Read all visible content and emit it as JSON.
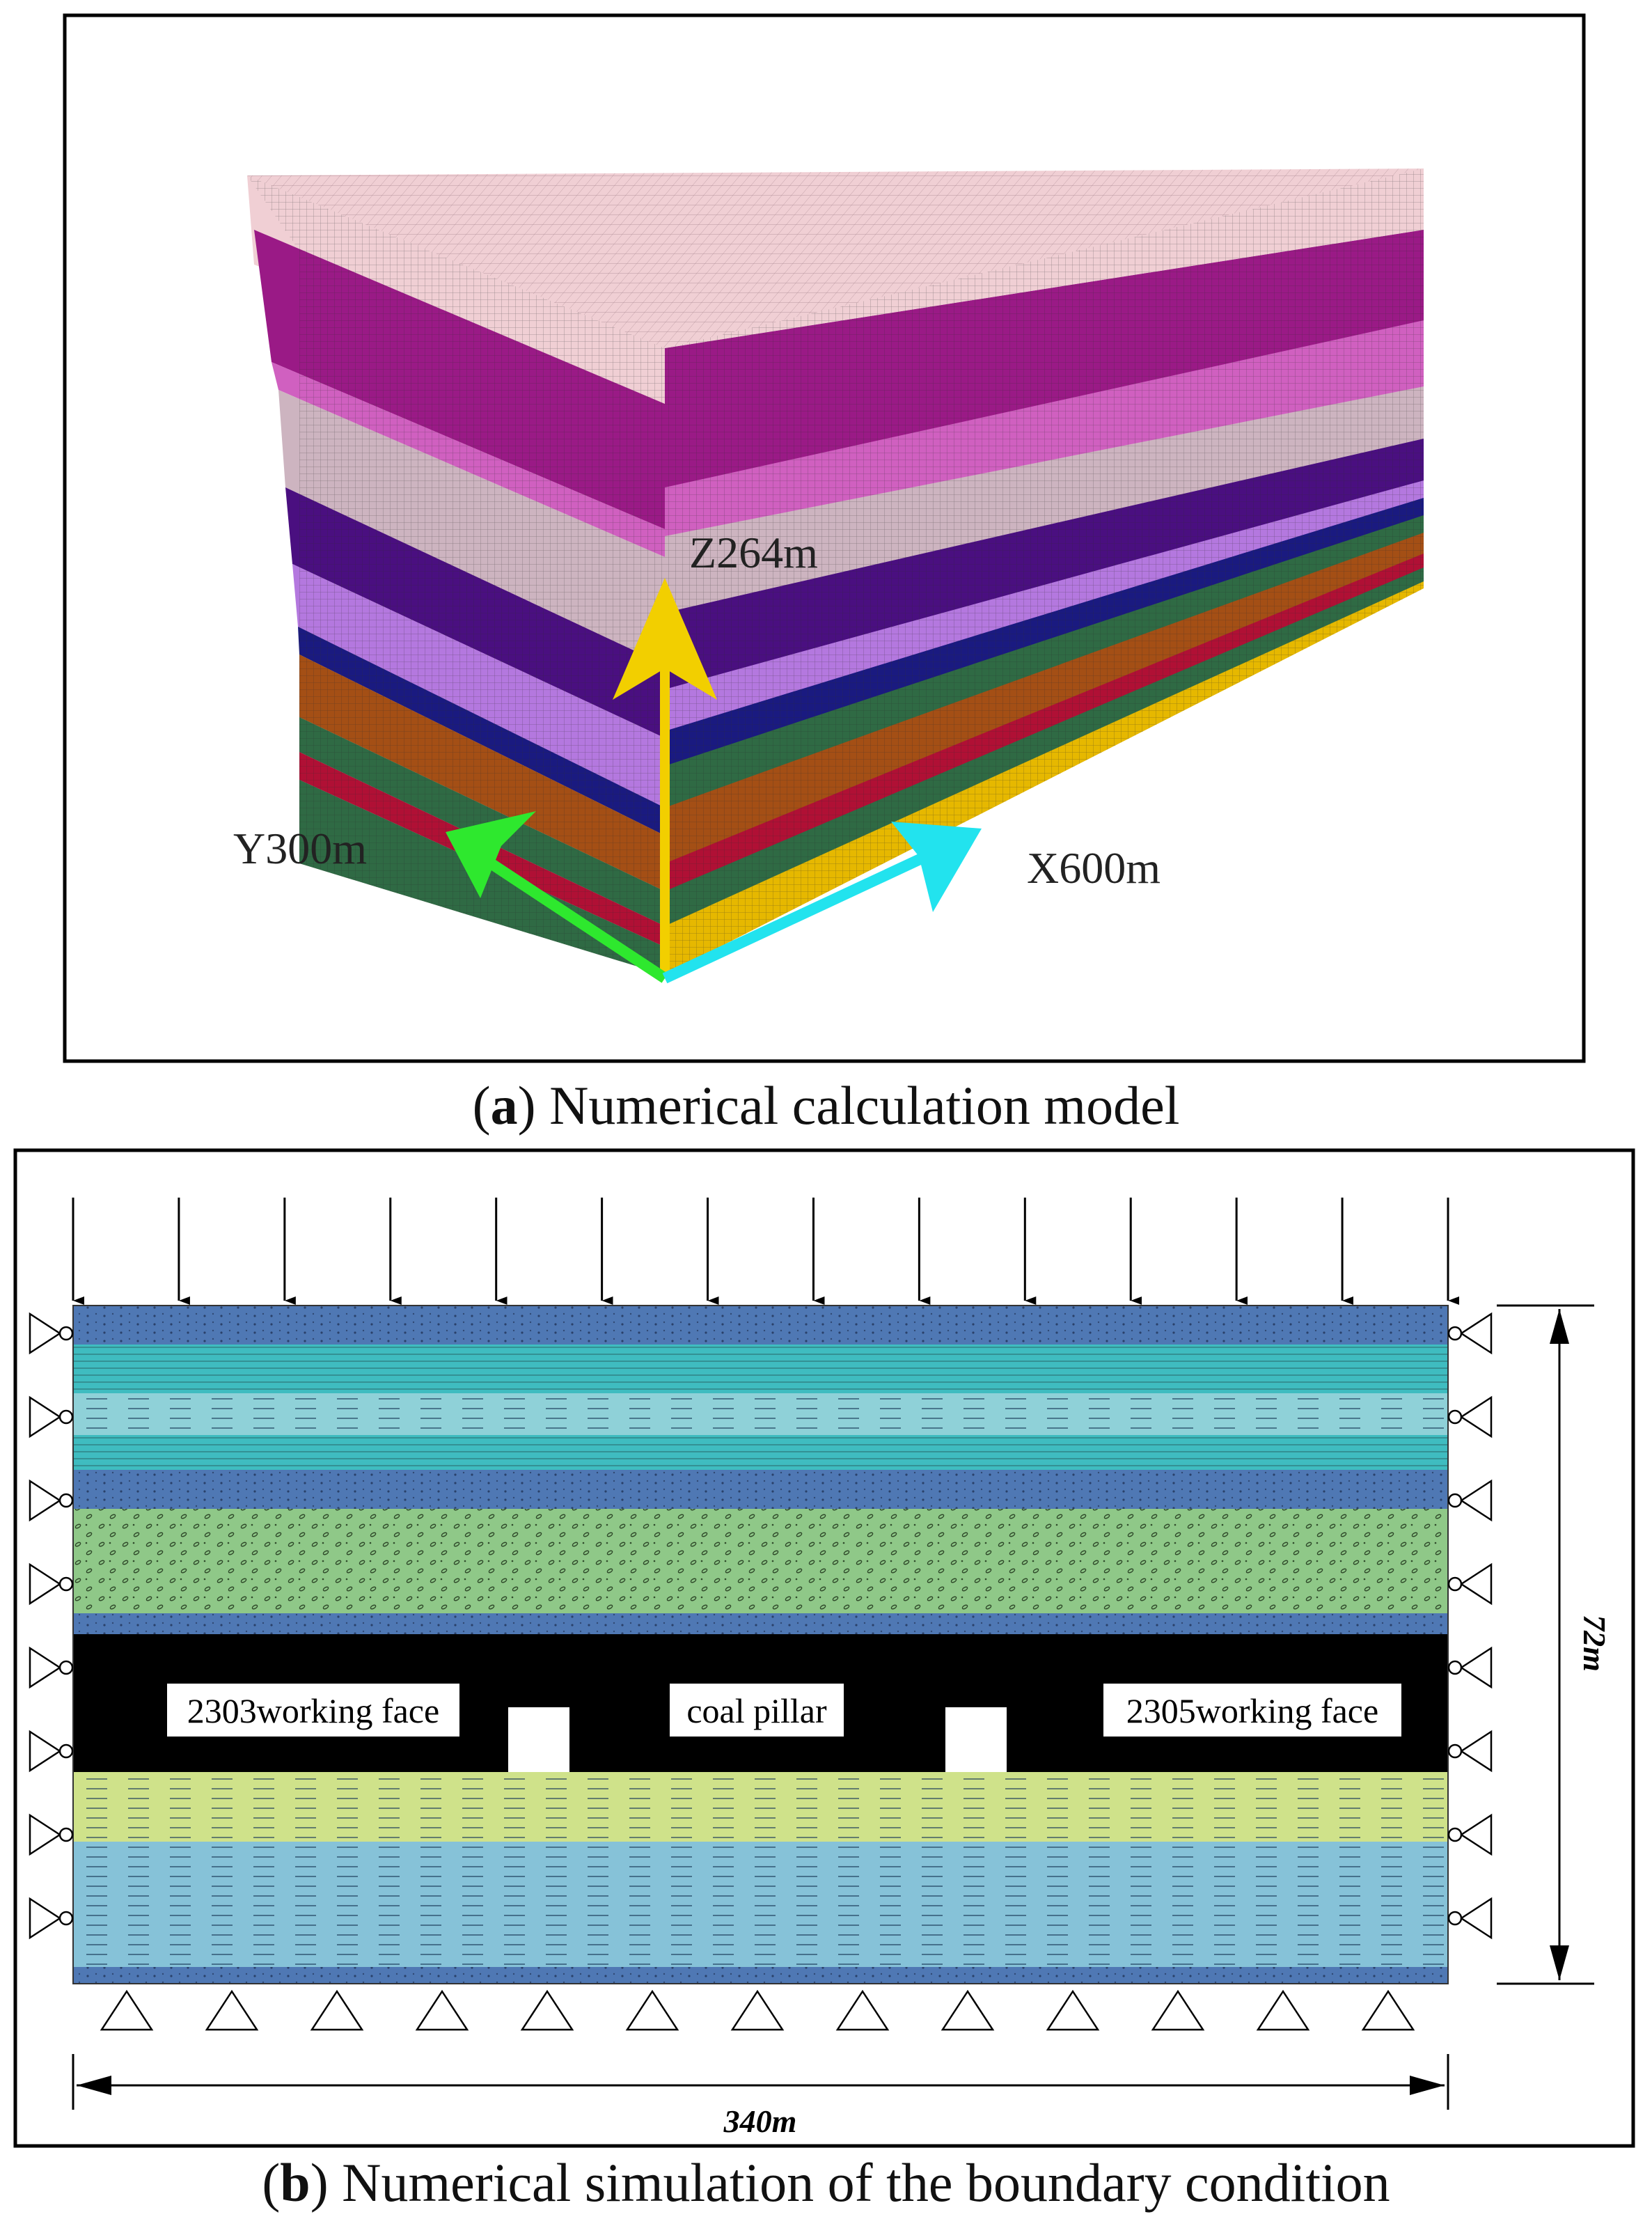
{
  "panel_a": {
    "caption_letter": "a",
    "caption_text": "Numerical calculation model",
    "axes": {
      "z": {
        "label": "Z264m",
        "color": "#f2cf00"
      },
      "y": {
        "label": "Y300m",
        "color": "#2ee82e"
      },
      "x": {
        "label": "X600m",
        "color": "#22e3ee"
      }
    },
    "colors": {
      "top_layer": "#f0cfd4",
      "upper_magenta": "#9a1a86",
      "violet": "#4a0f80",
      "lilac": "#b478df",
      "grey_pink": "#cdb4c0",
      "orange": "#a44f15",
      "green": "#2f6a44"
    }
  },
  "panel_b": {
    "caption_letter": "b",
    "caption_text": "Numerical simulation of the boundary condition",
    "labels": {
      "left_face": "2303working face",
      "pillar": "coal pillar",
      "right_face": "2305working face"
    },
    "dimensions": {
      "width": "340m",
      "height": "72m"
    },
    "colors": {
      "blue": "#4f78b4",
      "teal": "#3fbcc0",
      "light_teal": "#8fd1d8",
      "green": "#8fc888",
      "coal": "#000000",
      "yellow_green": "#cfe28a",
      "light_blue": "#86c2d8"
    }
  }
}
